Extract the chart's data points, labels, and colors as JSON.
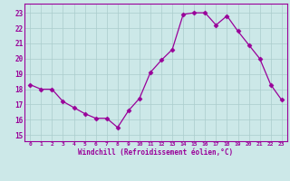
{
  "x": [
    0,
    1,
    2,
    3,
    4,
    5,
    6,
    7,
    8,
    9,
    10,
    11,
    12,
    13,
    14,
    15,
    16,
    17,
    18,
    19,
    20,
    21,
    22,
    23
  ],
  "y": [
    18.3,
    18.0,
    18.0,
    17.2,
    16.8,
    16.4,
    16.1,
    16.1,
    15.5,
    16.6,
    17.4,
    19.1,
    19.9,
    20.6,
    22.9,
    23.0,
    23.0,
    22.2,
    22.8,
    21.8,
    20.9,
    20.0,
    18.3,
    17.3
  ],
  "line_color": "#990099",
  "marker": "D",
  "marker_size": 2.5,
  "bg_color": "#cce8e8",
  "grid_color": "#aacccc",
  "xlabel": "Windchill (Refroidissement éolien,°C)",
  "ylabel_ticks": [
    15,
    16,
    17,
    18,
    19,
    20,
    21,
    22,
    23
  ],
  "xtick_labels": [
    "0",
    "1",
    "2",
    "3",
    "4",
    "5",
    "6",
    "7",
    "8",
    "9",
    "10",
    "11",
    "12",
    "13",
    "14",
    "15",
    "16",
    "17",
    "18",
    "19",
    "20",
    "21",
    "22",
    "23"
  ],
  "xlim": [
    -0.5,
    23.5
  ],
  "ylim": [
    14.6,
    23.6
  ]
}
